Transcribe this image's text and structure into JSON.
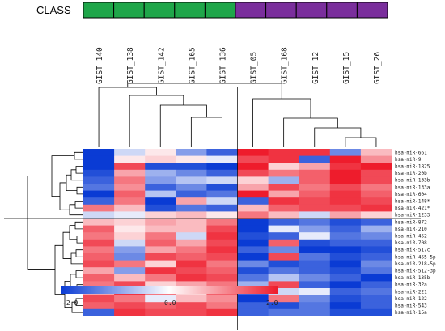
{
  "class_bar": {
    "label": "CLASS",
    "groups": [
      {
        "color": "#1fa64a",
        "count": 5
      },
      {
        "color": "#7a2e9c",
        "count": 5
      }
    ]
  },
  "chart_data": {
    "type": "heatmap",
    "columns": [
      "GIST_140",
      "GIST_138",
      "GIST_142",
      "GIST_165",
      "GIST_136",
      "GIST_05",
      "GIST_168",
      "GIST_12",
      "GIST_15",
      "GIST_26"
    ],
    "rows": [
      "hsa-miR-661",
      "hsa-miR-9",
      "hsa-miR-1825",
      "hsa-miR-20b",
      "hsa-miR-133b",
      "hsa-miR-133a",
      "hsa-miR-604",
      "hsa-miR-148*",
      "hsa-miR-421*",
      "hsa-miR-1233",
      "hsa-miR-872",
      "hsa-miR-210",
      "hsa-miR-452",
      "hsa-miR-708",
      "hsa-miR-517c",
      "hsa-miR-455-5p",
      "hsa-miR-218-5p",
      "hsa-miR-512-3p",
      "hsa-miR-135b",
      "hsa-miR-32a",
      "hsa-miR-221",
      "hsa-miR-122",
      "hsa-miR-543",
      "hsa-miR-15a"
    ],
    "values": [
      [
        -2.0,
        -0.4,
        0.2,
        -1.0,
        -1.6,
        2.0,
        1.8,
        1.8,
        -1.2,
        0.6
      ],
      [
        -2.0,
        0.2,
        0.4,
        0.2,
        -0.2,
        1.6,
        1.8,
        -1.6,
        2.0,
        1.0
      ],
      [
        -2.0,
        1.6,
        -1.8,
        -1.8,
        -2.0,
        2.0,
        0.4,
        0.8,
        1.8,
        2.0
      ],
      [
        -1.8,
        0.8,
        -0.8,
        -1.2,
        -1.6,
        1.6,
        1.2,
        1.4,
        2.0,
        1.6
      ],
      [
        -1.6,
        1.2,
        -1.0,
        -0.6,
        -0.4,
        0.4,
        -0.8,
        1.4,
        2.0,
        1.6
      ],
      [
        -1.4,
        1.0,
        -1.6,
        -1.2,
        -1.8,
        0.8,
        1.6,
        1.2,
        1.6,
        1.2
      ],
      [
        -2.0,
        1.4,
        -0.6,
        -1.6,
        -1.4,
        2.0,
        0.8,
        1.4,
        1.8,
        1.4
      ],
      [
        -1.6,
        1.2,
        -2.0,
        0.8,
        -0.4,
        -1.6,
        1.8,
        1.6,
        1.8,
        1.6
      ],
      [
        1.2,
        0.6,
        -1.8,
        -1.4,
        -1.6,
        0.6,
        1.4,
        1.6,
        1.6,
        1.8
      ],
      [
        -0.4,
        -0.2,
        0.4,
        0.6,
        0.2,
        1.2,
        0.6,
        -0.4,
        0.8,
        0.4
      ],
      [
        0.6,
        0.4,
        0.8,
        0.6,
        1.2,
        -2.0,
        -1.6,
        -1.4,
        -1.8,
        -1.6
      ],
      [
        1.4,
        0.2,
        0.6,
        0.6,
        1.6,
        -2.0,
        -0.2,
        -1.0,
        -1.6,
        -0.8
      ],
      [
        1.2,
        0.4,
        1.2,
        -0.4,
        1.8,
        -1.8,
        -1.6,
        -0.2,
        -1.4,
        -1.2
      ],
      [
        1.6,
        -0.4,
        1.4,
        0.8,
        1.6,
        -2.0,
        1.4,
        -1.8,
        -1.6,
        -1.6
      ],
      [
        1.2,
        -1.0,
        0.8,
        1.2,
        1.8,
        -1.6,
        -1.2,
        -2.0,
        -2.0,
        -1.8
      ],
      [
        1.4,
        -1.2,
        1.6,
        1.4,
        1.6,
        -2.0,
        1.6,
        -1.4,
        -1.8,
        -1.6
      ],
      [
        1.6,
        1.2,
        0.4,
        1.8,
        1.2,
        -1.2,
        -1.8,
        -1.6,
        -2.0,
        -1.2
      ],
      [
        0.8,
        -1.0,
        1.8,
        1.6,
        1.4,
        -1.8,
        -1.4,
        -1.6,
        -1.8,
        -1.4
      ],
      [
        1.4,
        0.6,
        1.2,
        1.8,
        1.6,
        -1.4,
        -0.6,
        -1.2,
        -1.6,
        -2.0
      ],
      [
        1.2,
        1.6,
        0.4,
        0.8,
        1.2,
        -0.8,
        1.6,
        -1.6,
        -2.0,
        -1.6
      ],
      [
        0.8,
        1.8,
        1.2,
        0.4,
        1.4,
        -1.6,
        -0.4,
        -0.2,
        -1.6,
        -1.4
      ],
      [
        1.6,
        1.2,
        -0.2,
        0.6,
        1.0,
        -2.0,
        1.2,
        -1.2,
        -1.8,
        -1.6
      ],
      [
        1.4,
        1.6,
        1.4,
        1.6,
        1.2,
        -1.6,
        -1.8,
        -1.4,
        -2.0,
        -1.6
      ],
      [
        -1.6,
        1.8,
        1.6,
        1.6,
        1.8,
        -1.6,
        -1.4,
        -1.4,
        -1.8,
        -1.8
      ]
    ],
    "colorbar": {
      "min": -2.0,
      "mid": 0.0,
      "max": 2.0,
      "tick_labels": [
        "-2.0",
        "0.0",
        "2.0"
      ],
      "low_color": "#0a3bd4",
      "mid_color": "#ffffff",
      "high_color": "#ee1c2c"
    }
  }
}
